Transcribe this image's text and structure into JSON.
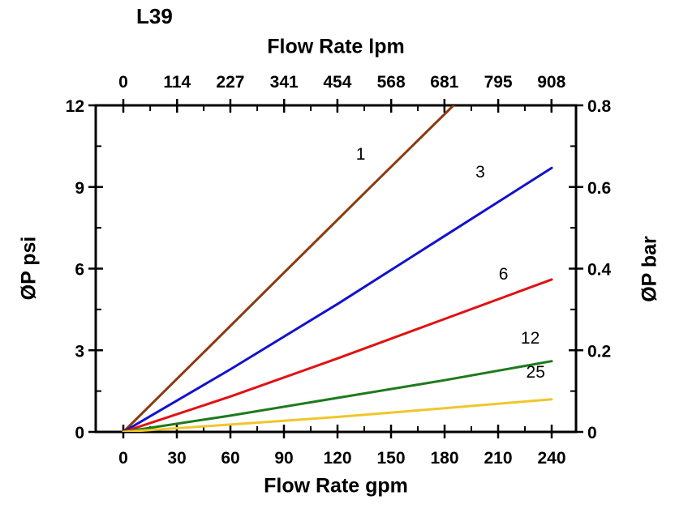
{
  "chart_data": {
    "type": "line",
    "title": "L39",
    "lpm_per_gpm": 3.785,
    "grid": false,
    "legend_position": "inline-labels",
    "axes": {
      "top": {
        "label": "Flow Rate lpm",
        "ticks": [
          0,
          114,
          227,
          341,
          454,
          568,
          681,
          795,
          908
        ],
        "range": [
          0,
          908
        ]
      },
      "bottom": {
        "label": "Flow Rate gpm",
        "ticks": [
          0,
          30,
          60,
          90,
          120,
          150,
          180,
          210,
          240
        ],
        "range": [
          0,
          240
        ]
      },
      "left": {
        "label": "ØP psi",
        "ticks": [
          0,
          3,
          6,
          9,
          12
        ],
        "range": [
          0,
          12
        ]
      },
      "right": {
        "label": "ØP bar",
        "ticks": [
          0,
          0.2,
          0.4,
          0.6,
          0.8
        ],
        "range": [
          0,
          0.8
        ]
      }
    },
    "series": [
      {
        "name": "1",
        "color": "#8a3a0e",
        "x": [
          0,
          45,
          90,
          135,
          185
        ],
        "y": [
          0,
          2.92,
          5.85,
          8.77,
          12.0
        ],
        "label_pos": {
          "x": 133,
          "y": 10.0
        }
      },
      {
        "name": "3",
        "color": "#1212cc",
        "x": [
          0,
          60,
          120,
          180,
          240
        ],
        "y": [
          0,
          2.3,
          4.7,
          7.2,
          9.7
        ],
        "label_pos": {
          "x": 200,
          "y": 9.35
        }
      },
      {
        "name": "6",
        "color": "#e01212",
        "x": [
          0,
          60,
          120,
          180,
          240
        ],
        "y": [
          0,
          1.3,
          2.7,
          4.15,
          5.6
        ],
        "label_pos": {
          "x": 213,
          "y": 5.6
        }
      },
      {
        "name": "12",
        "color": "#1c7a1c",
        "x": [
          0,
          60,
          120,
          180,
          240
        ],
        "y": [
          0,
          0.6,
          1.25,
          1.9,
          2.6
        ],
        "label_pos": {
          "x": 228,
          "y": 3.25
        }
      },
      {
        "name": "25",
        "color": "#f0c62c",
        "x": [
          0,
          60,
          120,
          180,
          240
        ],
        "y": [
          0,
          0.27,
          0.55,
          0.87,
          1.2
        ],
        "label_pos": {
          "x": 231,
          "y": 2.0
        }
      }
    ]
  }
}
